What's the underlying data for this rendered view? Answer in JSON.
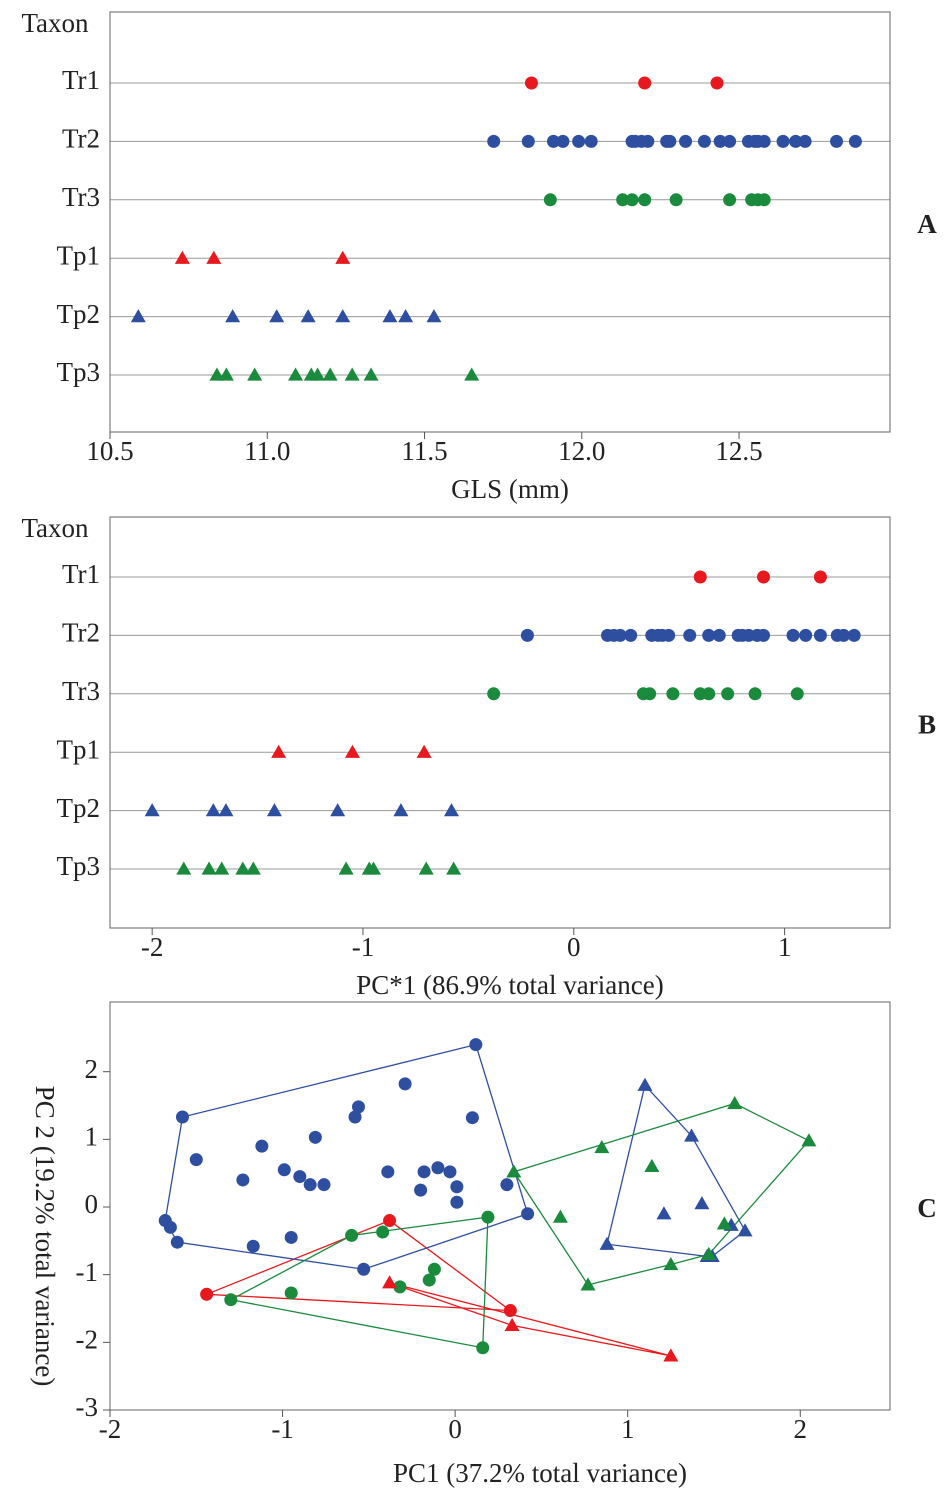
{
  "chart_data": [
    {
      "type": "strip",
      "panel_label": "A",
      "y_label": "Taxon",
      "x_label": "GLS (mm)",
      "xlim": [
        10.5,
        12.98
      ],
      "xticks": [
        10.5,
        {
          "value": 11,
          "label": "11.0"
        },
        11.5,
        {
          "value": 12,
          "label": "12.0"
        },
        12.5
      ],
      "grid": true,
      "groups": [
        {
          "name": "Tr1",
          "color": "#e8191e",
          "marker": "circle",
          "values": [
            11.84,
            12.2,
            12.43
          ]
        },
        {
          "name": "Tr2",
          "color": "#2e4ea0",
          "marker": "circle",
          "values": [
            11.72,
            11.83,
            11.91,
            11.94,
            11.99,
            12.03,
            12.16,
            12.17,
            12.19,
            12.21,
            12.27,
            12.28,
            12.33,
            12.39,
            12.44,
            12.47,
            12.53,
            12.55,
            12.56,
            12.58,
            12.64,
            12.68,
            12.71,
            12.81,
            12.87
          ]
        },
        {
          "name": "Tr3",
          "color": "#1a8a3c",
          "marker": "circle",
          "values": [
            11.9,
            12.13,
            12.16,
            12.2,
            12.3,
            12.47,
            12.54,
            12.56,
            12.58
          ]
        },
        {
          "name": "Tp1",
          "color": "#e8191e",
          "marker": "triangle",
          "values": [
            10.73,
            10.83,
            11.24
          ]
        },
        {
          "name": "Tp2",
          "color": "#2e4ea0",
          "marker": "triangle",
          "values": [
            10.59,
            10.89,
            11.03,
            11.13,
            11.24,
            11.39,
            11.44,
            11.53
          ]
        },
        {
          "name": "Tp3",
          "color": "#1a8a3c",
          "marker": "triangle",
          "values": [
            10.84,
            10.87,
            10.96,
            11.09,
            11.14,
            11.16,
            11.2,
            11.27,
            11.33,
            11.65
          ]
        }
      ]
    },
    {
      "type": "strip",
      "panel_label": "B",
      "y_label": "Taxon",
      "x_label": "PC*1 (86.9% total variance)",
      "xlim": [
        -2.2,
        1.5
      ],
      "xticks": [
        -2,
        -1,
        0,
        1
      ],
      "grid": true,
      "groups": [
        {
          "name": "Tr1",
          "color": "#e8191e",
          "marker": "circle",
          "values": [
            0.6,
            0.9,
            1.17
          ]
        },
        {
          "name": "Tr2",
          "color": "#2e4ea0",
          "marker": "circle",
          "values": [
            -0.22,
            0.16,
            0.19,
            0.22,
            0.27,
            0.37,
            0.4,
            0.42,
            0.45,
            0.55,
            0.64,
            0.69,
            0.78,
            0.8,
            0.83,
            0.87,
            0.9,
            1.04,
            1.1,
            1.17,
            1.25,
            1.28,
            1.33
          ]
        },
        {
          "name": "Tr3",
          "color": "#1a8a3c",
          "marker": "circle",
          "values": [
            -0.38,
            0.33,
            0.36,
            0.47,
            0.6,
            0.64,
            0.73,
            0.86,
            1.06
          ]
        },
        {
          "name": "Tp1",
          "color": "#e8191e",
          "marker": "triangle",
          "values": [
            -1.4,
            -1.05,
            -0.71
          ]
        },
        {
          "name": "Tp2",
          "color": "#2e4ea0",
          "marker": "triangle",
          "values": [
            -2.0,
            -1.71,
            -1.65,
            -1.42,
            -1.12,
            -0.82,
            -0.58
          ]
        },
        {
          "name": "Tp3",
          "color": "#1a8a3c",
          "marker": "triangle",
          "values": [
            -1.85,
            -1.73,
            -1.67,
            -1.57,
            -1.52,
            -1.08,
            -0.97,
            -0.95,
            -0.7,
            -0.57
          ]
        }
      ]
    },
    {
      "type": "scatter",
      "panel_label": "C",
      "x_label": "PC1 (37.2% total variance)",
      "y_label": "PC 2 (19.2% total variance)",
      "xlim": [
        -2,
        2.52
      ],
      "ylim": [
        -3,
        3.03
      ],
      "xticks": [
        -2,
        -1,
        0,
        1,
        2
      ],
      "yticks": [
        -3,
        -2,
        -1,
        0,
        1,
        2
      ],
      "hull": true,
      "series": [
        {
          "color": "#e8191e",
          "marker": "circle",
          "x": [
            -0.38,
            -1.44,
            0.32
          ],
          "y": [
            -0.2,
            -1.29,
            -1.53
          ]
        },
        {
          "color": "#2e4ea0",
          "marker": "circle",
          "x": [
            0.12,
            -0.29,
            -1.58,
            -0.56,
            -0.58,
            0.1,
            -0.81,
            -1.12,
            -1.5,
            -0.99,
            -1.23,
            -0.9,
            -0.84,
            -0.76,
            -0.39,
            -0.18,
            -0.1,
            -0.03,
            -0.2,
            0.01,
            0.01,
            0.3,
            0.42,
            -1.68,
            -1.65,
            -1.61,
            -1.17,
            -0.95,
            -0.53
          ],
          "y": [
            2.4,
            1.82,
            1.33,
            1.48,
            1.33,
            1.32,
            1.03,
            0.9,
            0.7,
            0.55,
            0.4,
            0.45,
            0.33,
            0.33,
            0.52,
            0.52,
            0.58,
            0.52,
            0.25,
            0.3,
            0.07,
            0.33,
            -0.1,
            -0.2,
            -0.3,
            -0.52,
            -0.58,
            -0.45,
            -0.92
          ]
        },
        {
          "color": "#1a8a3c",
          "marker": "circle",
          "x": [
            -0.6,
            -0.42,
            0.19,
            -0.12,
            -0.15,
            -0.32,
            -0.95,
            -1.3,
            0.16
          ],
          "y": [
            -0.42,
            -0.37,
            -0.15,
            -0.92,
            -1.08,
            -1.18,
            -1.27,
            -1.37,
            -2.08
          ]
        },
        {
          "color": "#e8191e",
          "marker": "triangle",
          "x": [
            -0.38,
            0.33,
            1.25
          ],
          "y": [
            -1.12,
            -1.75,
            -2.2
          ]
        },
        {
          "color": "#2e4ea0",
          "marker": "triangle",
          "x": [
            1.1,
            1.37,
            1.21,
            1.43,
            1.6,
            1.68,
            0.88,
            1.49,
            1.46
          ],
          "y": [
            1.8,
            1.05,
            -0.1,
            0.05,
            -0.27,
            -0.35,
            -0.55,
            -0.73,
            -0.73
          ]
        },
        {
          "color": "#1a8a3c",
          "marker": "triangle",
          "x": [
            0.34,
            0.85,
            1.62,
            2.05,
            1.14,
            0.61,
            1.56,
            1.25,
            0.77,
            1.47
          ],
          "y": [
            0.52,
            0.88,
            1.53,
            0.98,
            0.6,
            -0.15,
            -0.25,
            -0.85,
            -1.15,
            -0.7
          ]
        }
      ]
    }
  ]
}
